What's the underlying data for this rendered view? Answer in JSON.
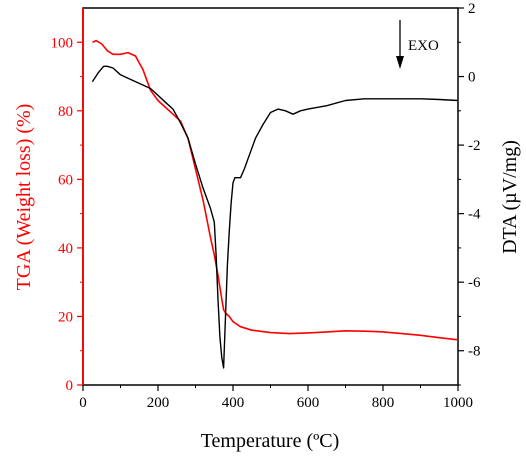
{
  "chart_data": {
    "type": "line",
    "xlabel": "Temperature (ºC)",
    "xlim": [
      0,
      1000
    ],
    "xticks": [
      "0",
      "200",
      "400",
      "600",
      "800",
      "1000"
    ],
    "y_left": {
      "label": "TGA (Weight loss) (%)",
      "lim": [
        0,
        110
      ],
      "ticks": [
        "0",
        "20",
        "40",
        "60",
        "80",
        "100"
      ],
      "color": "#ff0000"
    },
    "y_right": {
      "label": "DTA (µV/mg)",
      "lim": [
        -9,
        2
      ],
      "ticks": [
        "-8",
        "-6",
        "-4",
        "-2",
        "0",
        "2"
      ],
      "color": "#000000"
    },
    "annotation": "EXO",
    "series": [
      {
        "axis": "left",
        "color": "#ff0000",
        "x": [
          25,
          35,
          50,
          65,
          80,
          100,
          120,
          140,
          160,
          180,
          200,
          220,
          240,
          260,
          280,
          300,
          320,
          340,
          350,
          360,
          370,
          375,
          380,
          390,
          400,
          420,
          450,
          500,
          550,
          600,
          650,
          700,
          750,
          800,
          850,
          900,
          950,
          1000
        ],
        "y": [
          100,
          100.5,
          99.5,
          97.5,
          96.5,
          96.5,
          97,
          96,
          92,
          86,
          83,
          81,
          79,
          77,
          72,
          63,
          54,
          43,
          38,
          32,
          25,
          22,
          21,
          20,
          18.5,
          17,
          16,
          15.3,
          15,
          15.2,
          15.5,
          15.8,
          15.7,
          15.5,
          15,
          14.5,
          13.8,
          13.2
        ]
      },
      {
        "axis": "right",
        "color": "#000000",
        "x": [
          25,
          40,
          55,
          65,
          80,
          100,
          120,
          150,
          180,
          200,
          220,
          240,
          260,
          280,
          300,
          320,
          340,
          350,
          355,
          360,
          365,
          370,
          375,
          380,
          385,
          390,
          395,
          400,
          405,
          410,
          420,
          430,
          440,
          460,
          480,
          500,
          520,
          540,
          560,
          580,
          600,
          650,
          700,
          750,
          800,
          850,
          900,
          950,
          1000
        ],
        "y": [
          -0.15,
          0.1,
          0.3,
          0.3,
          0.25,
          0.05,
          -0.05,
          -0.2,
          -0.35,
          -0.55,
          -0.75,
          -0.95,
          -1.35,
          -1.8,
          -2.55,
          -3.25,
          -3.85,
          -4.25,
          -5.2,
          -6.5,
          -7.6,
          -8.2,
          -8.5,
          -7.0,
          -5.5,
          -4.5,
          -3.7,
          -3.1,
          -2.95,
          -2.95,
          -2.95,
          -2.7,
          -2.4,
          -1.8,
          -1.4,
          -1.05,
          -0.95,
          -1.0,
          -1.1,
          -1.0,
          -0.95,
          -0.85,
          -0.7,
          -0.65,
          -0.65,
          -0.65,
          -0.65,
          -0.67,
          -0.7
        ]
      }
    ]
  }
}
